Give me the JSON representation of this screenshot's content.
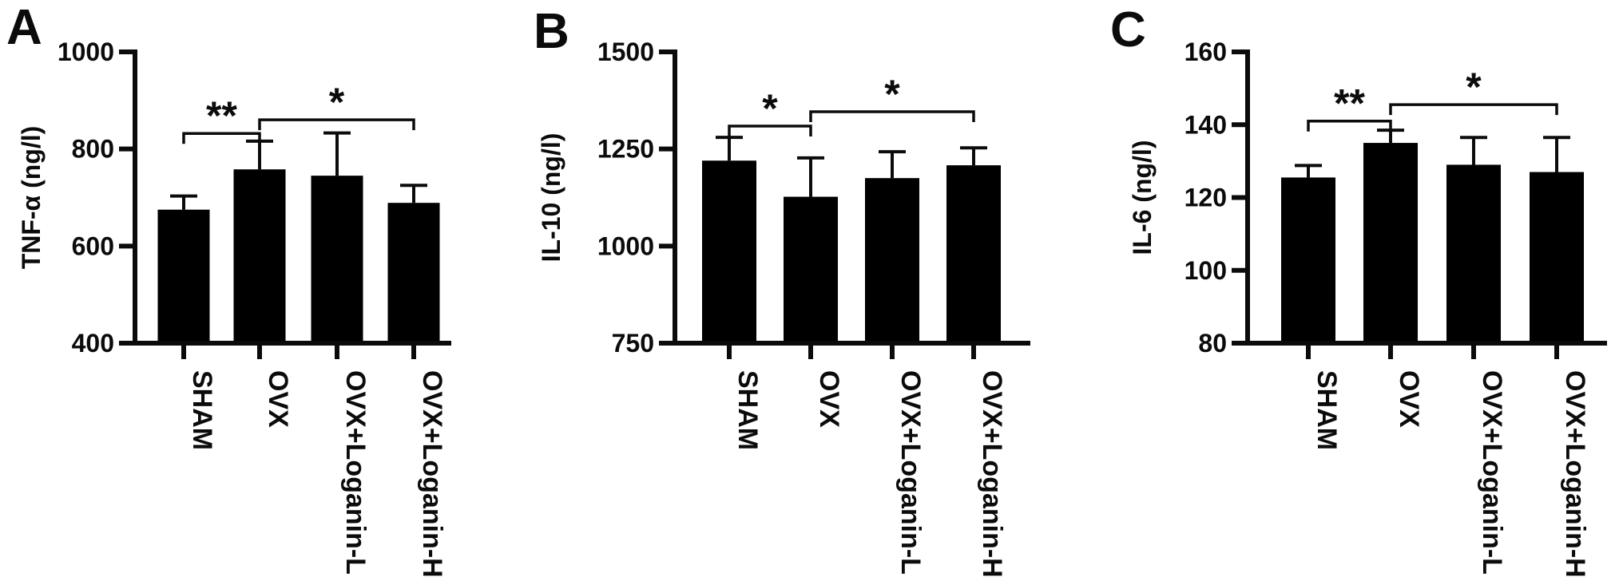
{
  "figure": {
    "description": "Three-panel bar figure of serum cytokine levels",
    "background": "#ffffff",
    "bar_color": "#000000"
  },
  "chart_data": [
    {
      "type": "bar",
      "panel_label": "A",
      "title": "",
      "xlabel": "",
      "ylabel": "TNF-α (ng/l)",
      "ylim": [
        400,
        1000
      ],
      "yticks": [
        400,
        600,
        800,
        1000
      ],
      "categories": [
        "SHAM",
        "OVX",
        "OVX+Loganin-L",
        "OVX+Loganin-H"
      ],
      "values": [
        675,
        758,
        745,
        689
      ],
      "errors_upper": [
        28,
        58,
        88,
        36
      ],
      "bar_color": "#000000",
      "grid": false,
      "legend": null,
      "significance_brackets": [
        {
          "group_a": "SHAM",
          "group_b": "OVX",
          "label": "**",
          "line_y": 832
        },
        {
          "group_a": "OVX",
          "group_b": "OVX+Loganin-H",
          "label": "*",
          "line_y": 860
        }
      ]
    },
    {
      "type": "bar",
      "panel_label": "B",
      "title": "",
      "xlabel": "",
      "ylabel": "IL-10 (ng/l)",
      "ylim": [
        750,
        1500
      ],
      "yticks": [
        750,
        1000,
        1250,
        1500
      ],
      "categories": [
        "SHAM",
        "OVX",
        "OVX+Loganin-L",
        "OVX+Loganin-H"
      ],
      "values": [
        1220,
        1127,
        1175,
        1208
      ],
      "errors_upper": [
        60,
        100,
        68,
        45
      ],
      "bar_color": "#000000",
      "grid": false,
      "legend": null,
      "significance_brackets": [
        {
          "group_a": "SHAM",
          "group_b": "OVX",
          "label": "*",
          "line_y": 1309
        },
        {
          "group_a": "OVX",
          "group_b": "OVX+Loganin-H",
          "label": "*",
          "line_y": 1346
        }
      ]
    },
    {
      "type": "bar",
      "panel_label": "C",
      "title": "",
      "xlabel": "",
      "ylabel": "IL-6 (ng/l)",
      "ylim": [
        80,
        160
      ],
      "yticks": [
        80,
        100,
        120,
        140,
        160
      ],
      "categories": [
        "SHAM",
        "OVX",
        "OVX+Loganin-L",
        "OVX+Loganin-H"
      ],
      "values": [
        125.5,
        135,
        129,
        127
      ],
      "errors_upper": [
        3.3,
        3.5,
        7.5,
        9.5
      ],
      "bar_color": "#000000",
      "grid": false,
      "legend": null,
      "significance_brackets": [
        {
          "group_a": "SHAM",
          "group_b": "OVX",
          "label": "**",
          "line_y": 141
        },
        {
          "group_a": "OVX",
          "group_b": "OVX+Loganin-H",
          "label": "*",
          "line_y": 145.5
        }
      ]
    }
  ]
}
